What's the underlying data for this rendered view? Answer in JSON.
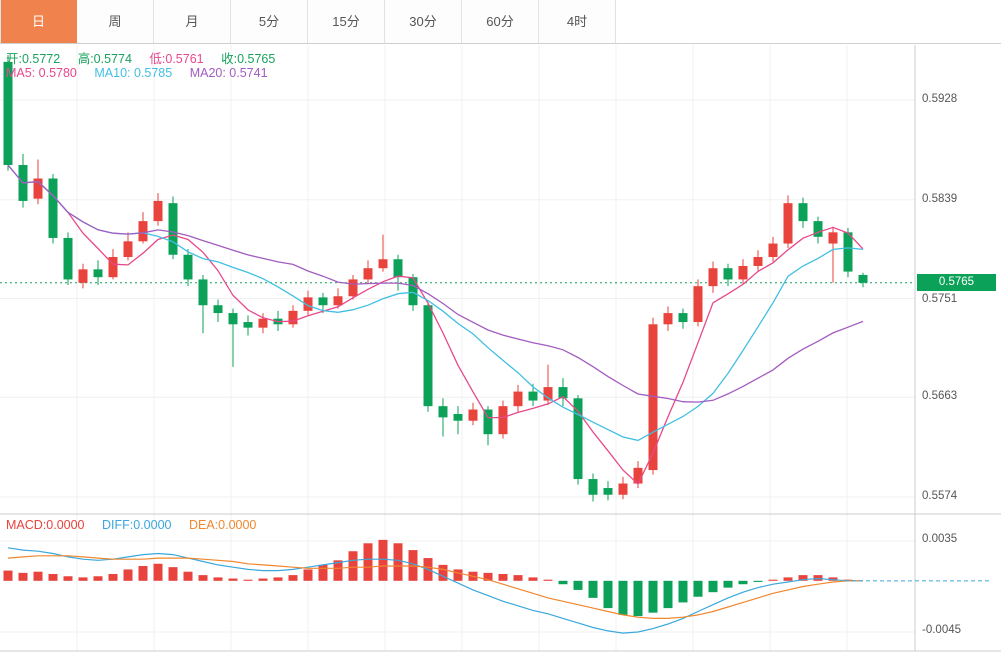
{
  "tabs": [
    {
      "label": "日",
      "active": true
    },
    {
      "label": "周",
      "active": false
    },
    {
      "label": "月",
      "active": false
    },
    {
      "label": "5分",
      "active": false
    },
    {
      "label": "15分",
      "active": false
    },
    {
      "label": "30分",
      "active": false
    },
    {
      "label": "60分",
      "active": false
    },
    {
      "label": "4时",
      "active": false
    }
  ],
  "legend": {
    "open": "开:0.5772",
    "high": "高:0.5774",
    "low": "低:0.5761",
    "close": "收:0.5765",
    "ma5": "MA5: 0.5780",
    "ma10": "MA10: 0.5785",
    "ma20": "MA20: 0.5741"
  },
  "macd_legend": {
    "macd": "MACD:0.0000",
    "diff": "DIFF:0.0000",
    "dea": "DEA:0.0000"
  },
  "axis": {
    "price_labels": [
      "0.5928",
      "0.5839",
      "0.5751",
      "0.5663",
      "0.5574"
    ],
    "price_tag": "0.5765",
    "macd_labels": [
      "0.0035",
      "-0.0045"
    ]
  },
  "colors": {
    "up": "#e8433c",
    "down": "#0ca158",
    "ma5": "#e8488a",
    "ma10": "#41bfe3",
    "ma20": "#a35cc0",
    "diff": "#3aa8dc",
    "dea": "#f0872f",
    "grid": "#f0f0f0",
    "border": "#cccccc",
    "current_line": "#12a05c",
    "tag_bg": "#0ca158",
    "tab_active": "#f0824e"
  },
  "chart_data": {
    "type": "candlestick",
    "title": "",
    "price_axis": {
      "ticks": [
        0.5928,
        0.5839,
        0.5751,
        0.5663,
        0.5574
      ]
    },
    "current_price": 0.5765,
    "ma_periods": [
      5,
      10,
      20
    ],
    "candles": [
      [
        0.5962,
        0.5968,
        0.5865,
        0.587
      ],
      [
        0.587,
        0.588,
        0.5832,
        0.5838
      ],
      [
        0.584,
        0.5875,
        0.5835,
        0.5858
      ],
      [
        0.5858,
        0.5862,
        0.58,
        0.5805
      ],
      [
        0.5805,
        0.581,
        0.5763,
        0.5768
      ],
      [
        0.5765,
        0.5782,
        0.576,
        0.5777
      ],
      [
        0.5777,
        0.5785,
        0.5763,
        0.577
      ],
      [
        0.577,
        0.5795,
        0.5768,
        0.5788
      ],
      [
        0.5788,
        0.581,
        0.5785,
        0.5802
      ],
      [
        0.5802,
        0.5828,
        0.58,
        0.582
      ],
      [
        0.582,
        0.5845,
        0.5816,
        0.5838
      ],
      [
        0.5836,
        0.5842,
        0.5786,
        0.579
      ],
      [
        0.579,
        0.5795,
        0.5762,
        0.5768
      ],
      [
        0.5768,
        0.5772,
        0.572,
        0.5745
      ],
      [
        0.5745,
        0.575,
        0.573,
        0.5738
      ],
      [
        0.5738,
        0.5742,
        0.569,
        0.5728
      ],
      [
        0.573,
        0.5736,
        0.5718,
        0.5725
      ],
      [
        0.5725,
        0.5738,
        0.572,
        0.5733
      ],
      [
        0.5733,
        0.574,
        0.5722,
        0.5728
      ],
      [
        0.5728,
        0.5745,
        0.5725,
        0.574
      ],
      [
        0.574,
        0.5758,
        0.5736,
        0.5752
      ],
      [
        0.5752,
        0.5756,
        0.5738,
        0.5745
      ],
      [
        0.5745,
        0.576,
        0.5742,
        0.5753
      ],
      [
        0.5753,
        0.5772,
        0.575,
        0.5768
      ],
      [
        0.5768,
        0.5785,
        0.5764,
        0.5778
      ],
      [
        0.5778,
        0.5808,
        0.5775,
        0.5786
      ],
      [
        0.5786,
        0.579,
        0.5758,
        0.577
      ],
      [
        0.577,
        0.5773,
        0.574,
        0.5745
      ],
      [
        0.5745,
        0.5748,
        0.565,
        0.5655
      ],
      [
        0.5655,
        0.5662,
        0.5628,
        0.5645
      ],
      [
        0.5648,
        0.5655,
        0.563,
        0.5642
      ],
      [
        0.5642,
        0.5658,
        0.5638,
        0.5652
      ],
      [
        0.5652,
        0.5655,
        0.562,
        0.563
      ],
      [
        0.563,
        0.566,
        0.5626,
        0.5655
      ],
      [
        0.5655,
        0.5674,
        0.565,
        0.5668
      ],
      [
        0.5668,
        0.5675,
        0.5655,
        0.566
      ],
      [
        0.566,
        0.5692,
        0.5656,
        0.5672
      ],
      [
        0.5672,
        0.568,
        0.5655,
        0.5662
      ],
      [
        0.5662,
        0.5665,
        0.5585,
        0.559
      ],
      [
        0.559,
        0.5595,
        0.557,
        0.5576
      ],
      [
        0.5582,
        0.5588,
        0.5571,
        0.5576
      ],
      [
        0.5576,
        0.5592,
        0.5572,
        0.5586
      ],
      [
        0.5586,
        0.5606,
        0.5582,
        0.56
      ],
      [
        0.5598,
        0.5734,
        0.5594,
        0.5728
      ],
      [
        0.5728,
        0.5744,
        0.5722,
        0.5738
      ],
      [
        0.5738,
        0.5742,
        0.5724,
        0.573
      ],
      [
        0.573,
        0.5768,
        0.5726,
        0.5762
      ],
      [
        0.5762,
        0.5784,
        0.5756,
        0.5778
      ],
      [
        0.5778,
        0.5782,
        0.5762,
        0.5768
      ],
      [
        0.5768,
        0.5786,
        0.5764,
        0.578
      ],
      [
        0.578,
        0.5794,
        0.5776,
        0.5788
      ],
      [
        0.5788,
        0.5806,
        0.5784,
        0.58
      ],
      [
        0.58,
        0.5843,
        0.5796,
        0.5836
      ],
      [
        0.5836,
        0.5841,
        0.5814,
        0.582
      ],
      [
        0.582,
        0.5824,
        0.58,
        0.5806
      ],
      [
        0.58,
        0.5815,
        0.5765,
        0.581
      ],
      [
        0.581,
        0.5814,
        0.577,
        0.5775
      ],
      [
        0.5772,
        0.5774,
        0.5761,
        0.5765
      ]
    ],
    "macd": {
      "y_ticks": [
        0.0035,
        -0.0045
      ],
      "hist": [
        0.0009,
        0.0007,
        0.0008,
        0.0006,
        0.0004,
        0.0003,
        0.0004,
        0.0006,
        0.001,
        0.0013,
        0.0015,
        0.0012,
        0.0008,
        0.0005,
        0.0003,
        0.0002,
        0.0001,
        0.0002,
        0.0003,
        0.0005,
        0.001,
        0.0014,
        0.0018,
        0.0026,
        0.0033,
        0.0036,
        0.0033,
        0.0027,
        0.002,
        0.0014,
        0.001,
        0.0008,
        0.0007,
        0.0006,
        0.0005,
        0.0003,
        0.0001,
        -0.0003,
        -0.0008,
        -0.0015,
        -0.0024,
        -0.003,
        -0.0031,
        -0.0028,
        -0.0024,
        -0.0019,
        -0.0014,
        -0.001,
        -0.0006,
        -0.0003,
        -0.0001,
        0.0001,
        0.0003,
        0.0005,
        0.0005,
        0.0003,
        0.0001,
        0.0
      ],
      "diff": [
        0.0029,
        0.0027,
        0.0026,
        0.0024,
        0.0021,
        0.0019,
        0.0018,
        0.0019,
        0.0021,
        0.0023,
        0.0024,
        0.0023,
        0.002,
        0.0017,
        0.0014,
        0.0012,
        0.001,
        0.0009,
        0.0009,
        0.001,
        0.0012,
        0.0014,
        0.0016,
        0.0018,
        0.0019,
        0.0019,
        0.0018,
        0.0015,
        0.001,
        0.0004,
        -0.0002,
        -0.0008,
        -0.0013,
        -0.0018,
        -0.0022,
        -0.0026,
        -0.0029,
        -0.0033,
        -0.0037,
        -0.0041,
        -0.0044,
        -0.0046,
        -0.0045,
        -0.0042,
        -0.0038,
        -0.0033,
        -0.0027,
        -0.0021,
        -0.0015,
        -0.001,
        -0.0006,
        -0.0003,
        -0.0001,
        0.0001,
        0.0002,
        0.0001,
        0.0,
        0.0
      ],
      "dea": [
        0.002,
        0.0021,
        0.0022,
        0.0022,
        0.0022,
        0.0021,
        0.002,
        0.0019,
        0.0019,
        0.0019,
        0.002,
        0.002,
        0.002,
        0.0019,
        0.0018,
        0.0017,
        0.0015,
        0.0014,
        0.0013,
        0.0012,
        0.0011,
        0.0011,
        0.0011,
        0.0012,
        0.0012,
        0.0013,
        0.0013,
        0.0013,
        0.0012,
        0.001,
        0.0007,
        0.0004,
        0.0001,
        -0.0003,
        -0.0007,
        -0.0011,
        -0.0015,
        -0.0018,
        -0.0021,
        -0.0024,
        -0.0027,
        -0.003,
        -0.0032,
        -0.0033,
        -0.0033,
        -0.0032,
        -0.003,
        -0.0027,
        -0.0023,
        -0.0019,
        -0.0015,
        -0.0011,
        -0.0008,
        -0.0005,
        -0.0003,
        -0.0001,
        0.0,
        0.0
      ]
    }
  }
}
